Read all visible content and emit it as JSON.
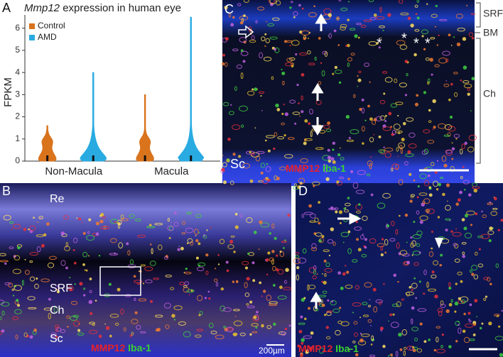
{
  "panel_labels": [
    "A",
    "B",
    "C",
    "D"
  ],
  "chart_data": {
    "type": "violin",
    "title": {
      "gene": "Mmp12",
      "text": "expression in human eye"
    },
    "y_label": "FPKM",
    "categories": [
      "Non-Macula",
      "Macula"
    ],
    "series": [
      {
        "name": "Control",
        "color": "#d9731c",
        "values": [
          1.6,
          3.0
        ]
      },
      {
        "name": "AMD",
        "color": "#29abe2",
        "values": [
          4.0,
          6.5
        ]
      }
    ],
    "ylim": [
      0,
      6.6
    ],
    "yticks": [
      0,
      1,
      2,
      3,
      4,
      5,
      6
    ],
    "legend": "upper left"
  },
  "panel_b": {
    "labels": [
      "Re",
      "SRF",
      "Ch",
      "Sc"
    ],
    "stain": [
      "MMP12",
      "Iba-1"
    ],
    "scale_bar": "200µm"
  },
  "panel_c": {
    "labels": [
      "SRF",
      "BM",
      "Ch"
    ],
    "tissue": "Sc",
    "asterisks": [
      "*",
      "*",
      "*",
      "*"
    ],
    "stain": [
      "MMP12",
      "Iba-1"
    ]
  },
  "panel_d": {
    "stain": [
      "MMP12",
      "Iba-1"
    ]
  }
}
